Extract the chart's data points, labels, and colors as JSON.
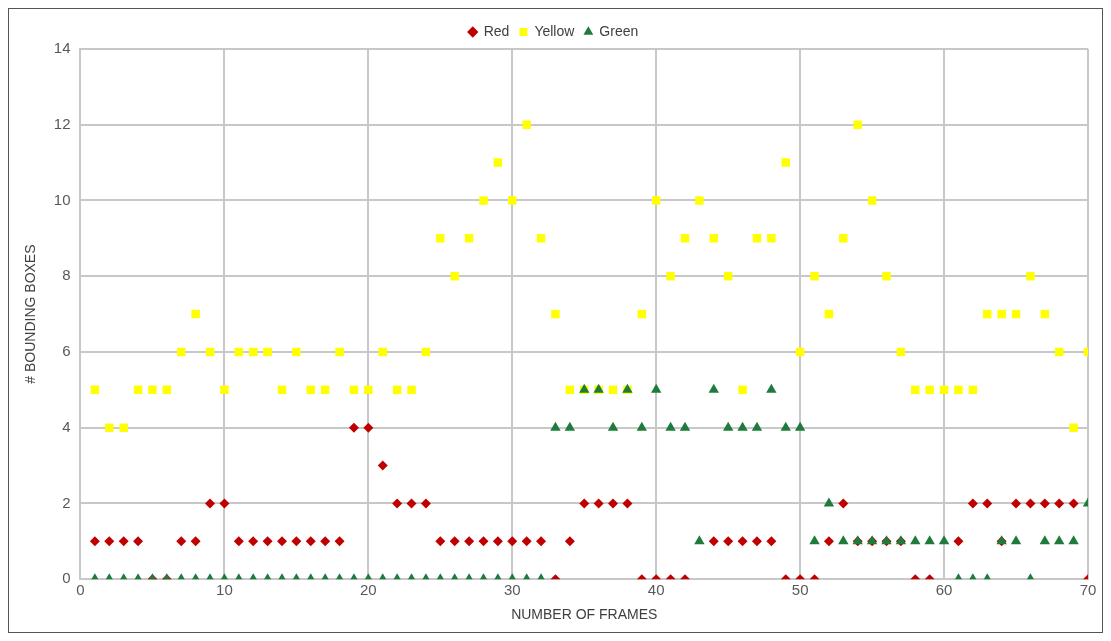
{
  "chart_data": {
    "type": "scatter",
    "xlabel": "NUMBER OF FRAMES",
    "ylabel": "# BOUNDING BOXES",
    "x": [
      1,
      2,
      3,
      4,
      5,
      6,
      7,
      8,
      9,
      10,
      11,
      12,
      13,
      14,
      15,
      16,
      17,
      18,
      19,
      20,
      21,
      22,
      23,
      24,
      25,
      26,
      27,
      28,
      29,
      30,
      31,
      32,
      33,
      34,
      35,
      36,
      37,
      38,
      39,
      40,
      41,
      42,
      43,
      44,
      45,
      46,
      47,
      48,
      49,
      50,
      51,
      52,
      53,
      54,
      55,
      56,
      57,
      58,
      59,
      60,
      61,
      62,
      63,
      64,
      65,
      66,
      67,
      68,
      69,
      70
    ],
    "series": [
      {
        "name": "Red",
        "color": "#c00000",
        "marker": "diamond",
        "values": [
          1,
          1,
          1,
          1,
          0,
          0,
          1,
          1,
          2,
          2,
          1,
          1,
          1,
          1,
          1,
          1,
          1,
          1,
          4,
          4,
          3,
          2,
          2,
          2,
          1,
          1,
          1,
          1,
          1,
          1,
          1,
          1,
          0,
          1,
          2,
          2,
          2,
          2,
          0,
          0,
          0,
          0,
          null,
          1,
          1,
          1,
          1,
          1,
          0,
          0,
          0,
          1,
          2,
          1,
          1,
          1,
          1,
          0,
          0,
          null,
          1,
          2,
          2,
          1,
          2,
          2,
          2,
          2,
          2,
          0
        ]
      },
      {
        "name": "Yellow",
        "color": "#ffff00",
        "marker": "square",
        "values": [
          5,
          4,
          4,
          5,
          5,
          5,
          6,
          7,
          6,
          5,
          6,
          6,
          6,
          5,
          6,
          5,
          5,
          6,
          5,
          5,
          6,
          5,
          5,
          6,
          9,
          8,
          9,
          10,
          11,
          10,
          12,
          9,
          7,
          5,
          5,
          5,
          5,
          5,
          7,
          10,
          8,
          9,
          10,
          9,
          8,
          5,
          9,
          9,
          11,
          6,
          8,
          7,
          9,
          12,
          10,
          8,
          6,
          5,
          5,
          5,
          5,
          5,
          7,
          7,
          7,
          8,
          7,
          6,
          4,
          6
        ]
      },
      {
        "name": "Green",
        "color": "#1e7b3c",
        "marker": "triangle",
        "values": [
          0,
          0,
          0,
          0,
          0,
          0,
          0,
          0,
          0,
          0,
          0,
          0,
          0,
          0,
          0,
          0,
          0,
          0,
          0,
          0,
          0,
          0,
          0,
          0,
          0,
          0,
          0,
          0,
          0,
          0,
          0,
          0,
          4,
          4,
          5,
          5,
          4,
          5,
          4,
          5,
          4,
          4,
          1,
          5,
          4,
          4,
          4,
          5,
          4,
          4,
          1,
          2,
          1,
          1,
          1,
          1,
          1,
          1,
          1,
          1,
          0,
          0,
          0,
          1,
          1,
          0,
          1,
          1,
          1,
          2
        ]
      }
    ],
    "xlim": [
      0,
      70
    ],
    "xticks": [
      0,
      10,
      20,
      30,
      40,
      50,
      60,
      70
    ],
    "ylim": [
      0,
      14
    ],
    "yticks": [
      0,
      2,
      4,
      6,
      8,
      10,
      12,
      14
    ],
    "grid": true,
    "legend": "top"
  }
}
